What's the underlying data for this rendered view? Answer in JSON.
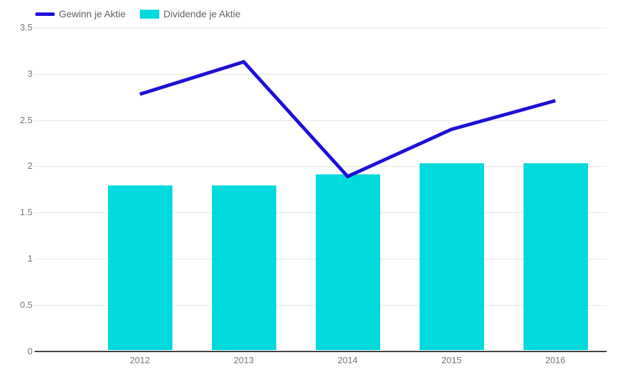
{
  "chart_data": {
    "type": "combo",
    "title": "",
    "xlabel": "",
    "ylabel": "",
    "categories": [
      "2012",
      "2013",
      "2014",
      "2015",
      "2016"
    ],
    "series": [
      {
        "name": "Gewinn je Aktie",
        "type": "line",
        "color": "#1e0fd7",
        "values": [
          2.78,
          3.13,
          1.89,
          2.4,
          2.71
        ]
      },
      {
        "name": "Dividende je Aktie",
        "type": "bar",
        "color": "#00dadc",
        "values": [
          1.79,
          1.79,
          1.91,
          2.03,
          2.03
        ]
      }
    ],
    "ylim": [
      0,
      3.5
    ],
    "yticks": [
      0,
      0.5,
      1,
      1.5,
      2,
      2.5,
      3,
      3.5
    ],
    "ytick_labels": [
      "0",
      "0.5",
      "1",
      "1.5",
      "2",
      "2.5",
      "3",
      "3.5"
    ],
    "grid": true,
    "legend_position": "top-left",
    "colors": {
      "line_series": "#1e0fd7",
      "bar_series": "#00dadc",
      "axis_text": "#757575",
      "legend_text": "#616161",
      "gridline": "#e6e6e6",
      "baseline": "#424242",
      "background": "#ffffff"
    }
  }
}
